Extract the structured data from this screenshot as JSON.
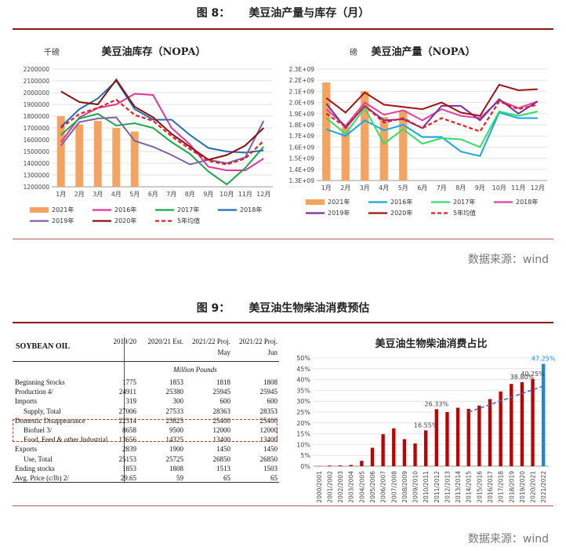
{
  "figure8": {
    "number": "图 8：",
    "title": "美豆油产量与库存（月）"
  },
  "figure9": {
    "number": "图 9：",
    "title": "美豆油生物柴油消费预估"
  },
  "source": "数据来源：wind",
  "chart_data": [
    {
      "type": "bar+line",
      "title": "美豆油库存（NOPA）",
      "unit_label": "千磅",
      "categories": [
        "1月",
        "2月",
        "3月",
        "4月",
        "5月",
        "6月",
        "7月",
        "8月",
        "9月",
        "10月",
        "11月",
        "12月"
      ],
      "ylim": [
        1200000,
        2200000
      ],
      "yticks": [
        "1200000",
        "1300000",
        "1400000",
        "1500000",
        "1600000",
        "1700000",
        "1800000",
        "1900000",
        "2000000",
        "2100000",
        "2200000"
      ],
      "bars": {
        "name": "2021年",
        "color": "#f4a460",
        "values": [
          1800000,
          1730000,
          1760000,
          1700000,
          1670000
        ]
      },
      "series": [
        {
          "name": "2016年",
          "color": "#e0359c",
          "dash": false,
          "values": [
            1580000,
            1790000,
            1870000,
            1900000,
            1990000,
            1980000,
            1700000,
            1560000,
            1370000,
            1340000,
            1340000,
            1440000
          ]
        },
        {
          "name": "2017年",
          "color": "#19a84a",
          "dash": false,
          "values": [
            1640000,
            1780000,
            1820000,
            1720000,
            1740000,
            1700000,
            1580000,
            1480000,
            1330000,
            1220000,
            1360000,
            1540000
          ]
        },
        {
          "name": "2018年",
          "color": "#1f6fb5",
          "dash": false,
          "values": [
            1710000,
            1860000,
            1950000,
            2100000,
            1860000,
            1770000,
            1770000,
            1640000,
            1530000,
            1500000,
            1490000,
            1510000
          ]
        },
        {
          "name": "2019年",
          "color": "#7f5fa8",
          "dash": false,
          "values": [
            1550000,
            1750000,
            1780000,
            1790000,
            1590000,
            1540000,
            1470000,
            1390000,
            1430000,
            1400000,
            1450000,
            1760000
          ]
        },
        {
          "name": "2020年",
          "color": "#8b1010",
          "dash": false,
          "values": [
            2010000,
            1920000,
            1900000,
            2110000,
            1880000,
            1790000,
            1650000,
            1540000,
            1430000,
            1470000,
            1550000,
            1700000
          ]
        },
        {
          "name": "5年均值",
          "color": "#e02020",
          "dash": true,
          "values": [
            1700000,
            1820000,
            1870000,
            1940000,
            1810000,
            1760000,
            1630000,
            1520000,
            1420000,
            1390000,
            1440000,
            1590000
          ]
        }
      ]
    },
    {
      "type": "bar+line",
      "title": "美豆油产量（NOPA）",
      "unit_label": "磅",
      "categories": [
        "1月",
        "2月",
        "3月",
        "4月",
        "5月",
        "6月",
        "7月",
        "8月",
        "9月",
        "10月",
        "11月",
        "12月"
      ],
      "ylim": [
        1300000000.0,
        2300000000.0
      ],
      "yticks": [
        "1.3E+09",
        "1.4E+09",
        "1.5E+09",
        "1.6E+09",
        "1.7E+09",
        "1.8E+09",
        "1.9E+09",
        "2.0E+09",
        "2.1E+09",
        "2.2E+09",
        "2.3E+09"
      ],
      "bars": {
        "name": "2021年",
        "color": "#f4a460",
        "values": [
          2180000000.0,
          1780000000.0,
          2100000000.0,
          1870000000.0,
          1930000000.0
        ]
      },
      "series": [
        {
          "name": "2016年",
          "color": "#18a8e0",
          "dash": false,
          "values": [
            1760000000.0,
            1700000000.0,
            1840000000.0,
            1750000000.0,
            1800000000.0,
            1690000000.0,
            1690000000.0,
            1560000000.0,
            1520000000.0,
            1910000000.0,
            1860000000.0,
            1860000000.0
          ]
        },
        {
          "name": "2017年",
          "color": "#33dd66",
          "dash": false,
          "values": [
            1860000000.0,
            1720000000.0,
            1950000000.0,
            1630000000.0,
            1760000000.0,
            1630000000.0,
            1680000000.0,
            1670000000.0,
            1600000000.0,
            1920000000.0,
            1880000000.0,
            1920000000.0
          ]
        },
        {
          "name": "2018年",
          "color": "#e040a0",
          "dash": false,
          "values": [
            1940000000.0,
            1790000000.0,
            2000000000.0,
            1890000000.0,
            1930000000.0,
            1840000000.0,
            1940000000.0,
            1880000000.0,
            1860000000.0,
            2020000000.0,
            1950000000.0,
            2010000000.0
          ]
        },
        {
          "name": "2019年",
          "color": "#7a2f9e",
          "dash": false,
          "values": [
            1990000000.0,
            1770000000.0,
            1970000000.0,
            1840000000.0,
            1850000000.0,
            1770000000.0,
            1970000000.0,
            1970000000.0,
            1840000000.0,
            2030000000.0,
            1900000000.0,
            2010000000.0
          ]
        },
        {
          "name": "2020年",
          "color": "#a31212",
          "dash": false,
          "values": [
            2040000000.0,
            1910000000.0,
            2090000000.0,
            1980000000.0,
            1960000000.0,
            1940000000.0,
            2000000000.0,
            1910000000.0,
            1880000000.0,
            2160000000.0,
            2110000000.0,
            2120000000.0
          ]
        },
        {
          "name": "5年均值",
          "color": "#e02020",
          "dash": true,
          "values": [
            1900000000.0,
            1780000000.0,
            1970000000.0,
            1820000000.0,
            1860000000.0,
            1770000000.0,
            1860000000.0,
            1800000000.0,
            1740000000.0,
            2010000000.0,
            1940000000.0,
            1980000000.0
          ]
        }
      ]
    },
    {
      "type": "bar",
      "title": "美豆油生物柴油消费占比",
      "categories": [
        "2000/2001",
        "2001/2002",
        "2002/2003",
        "2003/2004",
        "2004/2005",
        "2005/2006",
        "2006/2007",
        "2007/2008",
        "2008/2009",
        "2009/2010",
        "2010/2011",
        "2011/2012",
        "2012/2013",
        "2013/2014",
        "2014/2015",
        "2015/2016",
        "2016/2017",
        "2017/2018",
        "2018/2019",
        "2019/2020",
        "2020/2021",
        "2021/2022"
      ],
      "values": [
        0.1,
        0.3,
        0.4,
        0.6,
        2.5,
        8.5,
        14.8,
        17.5,
        12.5,
        10.5,
        16.55,
        26.33,
        25.0,
        27.0,
        26.5,
        28.0,
        31.0,
        34.5,
        38.0,
        38.8,
        40.25,
        47.25
      ],
      "bar_color": "#c00000",
      "highlight": {
        "index": 21,
        "color": "#1e88d8"
      },
      "data_labels": [
        {
          "index": 10,
          "text": "16.55%"
        },
        {
          "index": 11,
          "text": "26.33%"
        },
        {
          "index": 19,
          "text": "38.80%"
        },
        {
          "index": 20,
          "text": "40.25%"
        },
        {
          "index": 21,
          "text": "47.25%"
        }
      ],
      "ylim": [
        0,
        50
      ],
      "yticks": [
        "0%",
        "5%",
        "10%",
        "15%",
        "20%",
        "25%",
        "30%",
        "35%",
        "40%",
        "45%",
        "50%"
      ],
      "trendline": {
        "from_index": 14,
        "from_value": 25.0,
        "to_index": 21,
        "to_value": 37.0,
        "color": "#3a6fc4"
      }
    }
  ],
  "table": {
    "title": "SOYBEAN OIL",
    "columns": [
      "2019/20",
      "2020/21 Est.",
      "2021/22 Proj.",
      "2021/22 Proj."
    ],
    "subcolumns": [
      "",
      "",
      "May",
      "Jun"
    ],
    "unit": "Million Pounds",
    "rows": [
      {
        "label": "Beginning Stocks",
        "values": [
          "1775",
          "1853",
          "1818",
          "1808"
        ]
      },
      {
        "label": "Production 4/",
        "values": [
          "24911",
          "25380",
          "25945",
          "25945"
        ]
      },
      {
        "label": "Imports",
        "values": [
          "319",
          "300",
          "600",
          "600"
        ]
      },
      {
        "label": "  Supply, Total",
        "values": [
          "27006",
          "27533",
          "28363",
          "28353"
        ]
      },
      {
        "label": "Domestic Disappearance",
        "values": [
          "22314",
          "23825",
          "25400",
          "25400"
        ]
      },
      {
        "label": "  Biofuel 3/",
        "values": [
          "8658",
          "9500",
          "12000",
          "12000"
        ]
      },
      {
        "label": "  Food, Feed & other Industrial",
        "values": [
          "13656",
          "14325",
          "13400",
          "13400"
        ]
      },
      {
        "label": "Exports",
        "values": [
          "2839",
          "1900",
          "1450",
          "1450"
        ]
      },
      {
        "label": "  Use, Total",
        "values": [
          "25153",
          "25725",
          "26850",
          "26850"
        ]
      },
      {
        "label": "Ending stocks",
        "values": [
          "1853",
          "1808",
          "1513",
          "1503"
        ]
      },
      {
        "label": "Avg. Price (c/lb)  2/",
        "values": [
          "29.65",
          "59",
          "65",
          "65"
        ]
      }
    ]
  }
}
